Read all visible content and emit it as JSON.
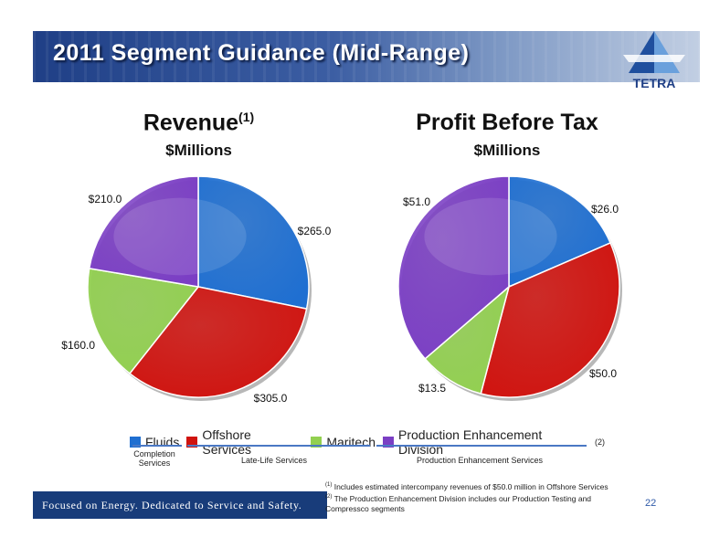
{
  "slide_title": "2011 Segment Guidance (Mid-Range)",
  "logo_text": "TETRA",
  "charts_text": {
    "revenue": {
      "title": "Revenue",
      "title_sup": "(1)",
      "subtitle": "$Millions"
    },
    "profit": {
      "title": "Profit Before Tax",
      "subtitle": "$Millions"
    }
  },
  "legend": [
    {
      "label": "Fluids",
      "color": "#1f6fd1"
    },
    {
      "label": "Offshore Services",
      "color": "#d0130f"
    },
    {
      "label": "Maritech",
      "color": "#92d050"
    },
    {
      "label": "Production Enhancement Division",
      "sup": "(2)",
      "color": "#7b3fc4"
    }
  ],
  "groups": {
    "completion": "Completion Services",
    "late_life": "Late-Life Services",
    "production": "Production Enhancement Services"
  },
  "tagline": "Focused on Energy. Dedicated to Service and Safety.",
  "footnotes": [
    {
      "mark": "(1)",
      "text": "Includes  estimated intercompany revenues of $50.0 million in Offshore Services"
    },
    {
      "mark": "(2)",
      "text": "The Production Enhancement Division includes our Production Testing and Compressco segments"
    }
  ],
  "page_number": "22",
  "chart_data": [
    {
      "type": "pie",
      "title": "Revenue(1)",
      "subtitle": "$Millions",
      "categories": [
        "Fluids",
        "Offshore Services",
        "Maritech",
        "Production Enhancement Division"
      ],
      "values": [
        265.0,
        305.0,
        160.0,
        210.0
      ],
      "labels": [
        "$265.0",
        "$305.0",
        "$160.0",
        "$210.0"
      ],
      "colors": [
        "#1f6fd1",
        "#d0130f",
        "#92d050",
        "#7b3fc4"
      ]
    },
    {
      "type": "pie",
      "title": "Profit Before Tax",
      "subtitle": "$Millions",
      "categories": [
        "Fluids",
        "Offshore Services",
        "Maritech",
        "Production Enhancement Division"
      ],
      "values": [
        26.0,
        50.0,
        13.5,
        51.0
      ],
      "labels": [
        "$26.0",
        "$50.0",
        "$13.5",
        "$51.0"
      ],
      "colors": [
        "#1f6fd1",
        "#d0130f",
        "#92d050",
        "#7b3fc4"
      ]
    }
  ]
}
